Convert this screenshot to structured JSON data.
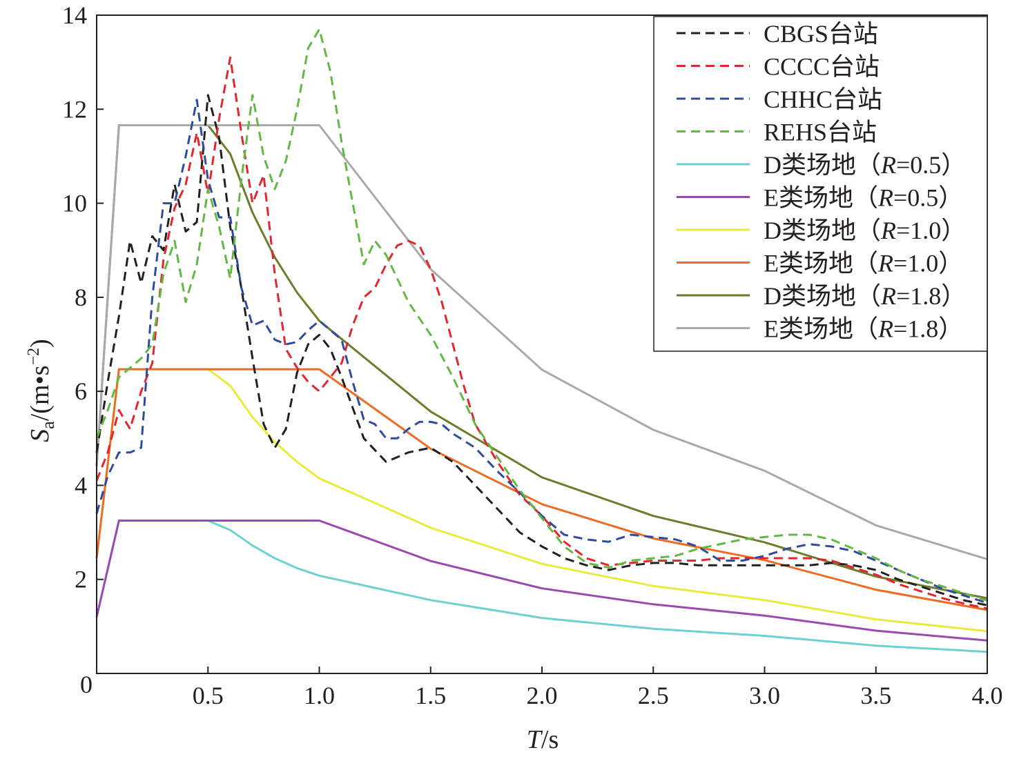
{
  "chart_data": {
    "type": "line",
    "xlabel": {
      "italic": "T",
      "rest": "/s"
    },
    "ylabel": {
      "italic": "S",
      "sub": "a",
      "unit": "/(m•s",
      "sup": "−2",
      "close": ")"
    },
    "xlim": [
      0,
      4.0
    ],
    "ylim": [
      0,
      14
    ],
    "xticks": [
      0.5,
      1.0,
      1.5,
      2.0,
      2.5,
      3.0,
      3.5,
      4.0
    ],
    "xtick_labels": [
      "0.5",
      "1.0",
      "1.5",
      "2.0",
      "2.5",
      "3.0",
      "3.5",
      "4.0"
    ],
    "yticks": [
      2,
      4,
      6,
      8,
      10,
      12,
      14
    ],
    "ytick_labels": [
      "2",
      "4",
      "6",
      "8",
      "10",
      "12",
      "14"
    ],
    "origin_label": "0",
    "grid": false,
    "legend_position": "top-right",
    "series": [
      {
        "name": "CBGS台站",
        "color": "#231f20",
        "style": "dashed",
        "points": [
          [
            0,
            4.7
          ],
          [
            0.05,
            6.2
          ],
          [
            0.1,
            7.6
          ],
          [
            0.15,
            9.2
          ],
          [
            0.2,
            8.3
          ],
          [
            0.25,
            9.3
          ],
          [
            0.3,
            9.0
          ],
          [
            0.35,
            10.4
          ],
          [
            0.4,
            9.4
          ],
          [
            0.45,
            9.6
          ],
          [
            0.5,
            12.3
          ],
          [
            0.55,
            11.4
          ],
          [
            0.6,
            9.5
          ],
          [
            0.65,
            8.2
          ],
          [
            0.7,
            6.7
          ],
          [
            0.75,
            5.3
          ],
          [
            0.8,
            4.8
          ],
          [
            0.85,
            5.2
          ],
          [
            0.9,
            6.4
          ],
          [
            0.95,
            7.0
          ],
          [
            1.0,
            7.2
          ],
          [
            1.05,
            6.9
          ],
          [
            1.1,
            6.3
          ],
          [
            1.2,
            5.0
          ],
          [
            1.3,
            4.5
          ],
          [
            1.4,
            4.7
          ],
          [
            1.5,
            4.8
          ],
          [
            1.6,
            4.5
          ],
          [
            1.7,
            4.0
          ],
          [
            1.8,
            3.5
          ],
          [
            1.9,
            3.0
          ],
          [
            2.0,
            2.7
          ],
          [
            2.1,
            2.45
          ],
          [
            2.2,
            2.3
          ],
          [
            2.3,
            2.2
          ],
          [
            2.4,
            2.3
          ],
          [
            2.5,
            2.35
          ],
          [
            2.6,
            2.35
          ],
          [
            2.7,
            2.3
          ],
          [
            2.8,
            2.3
          ],
          [
            2.9,
            2.3
          ],
          [
            3.0,
            2.3
          ],
          [
            3.1,
            2.3
          ],
          [
            3.2,
            2.3
          ],
          [
            3.3,
            2.35
          ],
          [
            3.4,
            2.3
          ],
          [
            3.5,
            2.2
          ],
          [
            3.6,
            2.0
          ],
          [
            3.7,
            1.85
          ],
          [
            3.8,
            1.7
          ],
          [
            3.9,
            1.55
          ],
          [
            4.0,
            1.45
          ]
        ]
      },
      {
        "name": "CCCC台站",
        "color": "#e3262e",
        "style": "dashed",
        "points": [
          [
            0,
            4.1
          ],
          [
            0.05,
            4.7
          ],
          [
            0.1,
            5.6
          ],
          [
            0.15,
            5.2
          ],
          [
            0.2,
            6.0
          ],
          [
            0.25,
            6.6
          ],
          [
            0.3,
            8.8
          ],
          [
            0.35,
            9.9
          ],
          [
            0.4,
            10.4
          ],
          [
            0.45,
            11.5
          ],
          [
            0.5,
            10.2
          ],
          [
            0.55,
            11.8
          ],
          [
            0.6,
            13.1
          ],
          [
            0.65,
            11.5
          ],
          [
            0.7,
            10.0
          ],
          [
            0.75,
            10.6
          ],
          [
            0.8,
            8.5
          ],
          [
            0.85,
            6.9
          ],
          [
            0.9,
            6.5
          ],
          [
            0.95,
            6.2
          ],
          [
            1.0,
            6.0
          ],
          [
            1.05,
            6.3
          ],
          [
            1.1,
            6.6
          ],
          [
            1.15,
            7.4
          ],
          [
            1.2,
            8.0
          ],
          [
            1.25,
            8.2
          ],
          [
            1.3,
            8.7
          ],
          [
            1.35,
            9.1
          ],
          [
            1.4,
            9.2
          ],
          [
            1.45,
            9.1
          ],
          [
            1.5,
            8.6
          ],
          [
            1.55,
            7.9
          ],
          [
            1.6,
            7.0
          ],
          [
            1.65,
            6.1
          ],
          [
            1.7,
            5.3
          ],
          [
            1.8,
            4.5
          ],
          [
            1.9,
            3.8
          ],
          [
            2.0,
            3.35
          ],
          [
            2.1,
            2.8
          ],
          [
            2.2,
            2.45
          ],
          [
            2.3,
            2.3
          ],
          [
            2.4,
            2.35
          ],
          [
            2.5,
            2.4
          ],
          [
            2.6,
            2.4
          ],
          [
            2.7,
            2.4
          ],
          [
            2.8,
            2.45
          ],
          [
            2.9,
            2.45
          ],
          [
            3.0,
            2.45
          ],
          [
            3.1,
            2.45
          ],
          [
            3.2,
            2.45
          ],
          [
            3.3,
            2.4
          ],
          [
            3.4,
            2.25
          ],
          [
            3.5,
            2.1
          ],
          [
            3.6,
            1.9
          ],
          [
            3.7,
            1.75
          ],
          [
            3.8,
            1.6
          ],
          [
            3.9,
            1.48
          ],
          [
            4.0,
            1.38
          ]
        ]
      },
      {
        "name": "CHHC台站",
        "color": "#2e4c9e",
        "style": "dashed",
        "points": [
          [
            0,
            3.4
          ],
          [
            0.05,
            4.2
          ],
          [
            0.1,
            4.7
          ],
          [
            0.15,
            4.7
          ],
          [
            0.2,
            4.8
          ],
          [
            0.25,
            8.0
          ],
          [
            0.3,
            10.0
          ],
          [
            0.35,
            10.0
          ],
          [
            0.4,
            11.0
          ],
          [
            0.45,
            12.2
          ],
          [
            0.5,
            10.5
          ],
          [
            0.55,
            9.7
          ],
          [
            0.6,
            9.7
          ],
          [
            0.65,
            8.2
          ],
          [
            0.7,
            7.4
          ],
          [
            0.75,
            7.5
          ],
          [
            0.8,
            7.1
          ],
          [
            0.85,
            7.0
          ],
          [
            0.9,
            7.05
          ],
          [
            0.95,
            7.3
          ],
          [
            1.0,
            7.5
          ],
          [
            1.05,
            7.3
          ],
          [
            1.1,
            7.1
          ],
          [
            1.15,
            6.2
          ],
          [
            1.2,
            5.4
          ],
          [
            1.25,
            5.3
          ],
          [
            1.3,
            5.0
          ],
          [
            1.35,
            5.0
          ],
          [
            1.4,
            5.2
          ],
          [
            1.45,
            5.35
          ],
          [
            1.5,
            5.35
          ],
          [
            1.55,
            5.3
          ],
          [
            1.6,
            5.1
          ],
          [
            1.7,
            4.8
          ],
          [
            1.8,
            4.3
          ],
          [
            1.9,
            3.85
          ],
          [
            2.0,
            3.35
          ],
          [
            2.1,
            2.95
          ],
          [
            2.2,
            2.85
          ],
          [
            2.3,
            2.8
          ],
          [
            2.4,
            2.95
          ],
          [
            2.5,
            2.9
          ],
          [
            2.6,
            2.85
          ],
          [
            2.7,
            2.7
          ],
          [
            2.8,
            2.4
          ],
          [
            2.9,
            2.4
          ],
          [
            3.0,
            2.5
          ],
          [
            3.1,
            2.65
          ],
          [
            3.2,
            2.75
          ],
          [
            3.3,
            2.7
          ],
          [
            3.4,
            2.6
          ],
          [
            3.5,
            2.4
          ],
          [
            3.6,
            2.2
          ],
          [
            3.7,
            2.0
          ],
          [
            3.8,
            1.8
          ],
          [
            3.9,
            1.65
          ],
          [
            4.0,
            1.5
          ]
        ]
      },
      {
        "name": "REHS台站",
        "color": "#62b843",
        "style": "dashed",
        "points": [
          [
            0,
            5.0
          ],
          [
            0.05,
            5.6
          ],
          [
            0.1,
            6.3
          ],
          [
            0.15,
            6.5
          ],
          [
            0.2,
            6.7
          ],
          [
            0.25,
            7.0
          ],
          [
            0.3,
            8.5
          ],
          [
            0.35,
            9.2
          ],
          [
            0.4,
            7.9
          ],
          [
            0.45,
            8.7
          ],
          [
            0.5,
            10.3
          ],
          [
            0.55,
            9.5
          ],
          [
            0.6,
            8.4
          ],
          [
            0.65,
            10.5
          ],
          [
            0.7,
            12.3
          ],
          [
            0.75,
            11.0
          ],
          [
            0.8,
            10.3
          ],
          [
            0.85,
            10.9
          ],
          [
            0.9,
            12.0
          ],
          [
            0.95,
            13.3
          ],
          [
            1.0,
            13.7
          ],
          [
            1.05,
            12.8
          ],
          [
            1.1,
            11.3
          ],
          [
            1.15,
            10.0
          ],
          [
            1.2,
            8.7
          ],
          [
            1.25,
            9.2
          ],
          [
            1.3,
            8.9
          ],
          [
            1.35,
            8.4
          ],
          [
            1.4,
            7.9
          ],
          [
            1.5,
            7.2
          ],
          [
            1.6,
            6.3
          ],
          [
            1.7,
            5.3
          ],
          [
            1.8,
            4.6
          ],
          [
            1.9,
            3.9
          ],
          [
            2.0,
            3.3
          ],
          [
            2.1,
            2.7
          ],
          [
            2.2,
            2.35
          ],
          [
            2.3,
            2.25
          ],
          [
            2.4,
            2.4
          ],
          [
            2.5,
            2.45
          ],
          [
            2.6,
            2.5
          ],
          [
            2.7,
            2.65
          ],
          [
            2.8,
            2.75
          ],
          [
            2.9,
            2.85
          ],
          [
            3.0,
            2.9
          ],
          [
            3.1,
            2.95
          ],
          [
            3.2,
            2.95
          ],
          [
            3.3,
            2.85
          ],
          [
            3.4,
            2.65
          ],
          [
            3.5,
            2.45
          ],
          [
            3.6,
            2.2
          ],
          [
            3.7,
            2.0
          ],
          [
            3.8,
            1.85
          ],
          [
            3.9,
            1.7
          ],
          [
            4.0,
            1.55
          ]
        ]
      },
      {
        "name": "D类场地（R=0.5）",
        "legend": {
          "prefix": "D类场地（",
          "italic": "R",
          "suffix": "=0.5）"
        },
        "color": "#6cd0d4",
        "style": "solid",
        "points": [
          [
            0,
            1.2
          ],
          [
            0.1,
            3.25
          ],
          [
            0.5,
            3.25
          ],
          [
            0.6,
            3.05
          ],
          [
            0.7,
            2.72
          ],
          [
            0.8,
            2.45
          ],
          [
            0.9,
            2.24
          ],
          [
            1.0,
            2.08
          ],
          [
            1.5,
            1.56
          ],
          [
            2.0,
            1.18
          ],
          [
            2.5,
            0.95
          ],
          [
            3.0,
            0.8
          ],
          [
            3.5,
            0.59
          ],
          [
            4.0,
            0.46
          ]
        ]
      },
      {
        "name": "E类场地（R=0.5）",
        "legend": {
          "prefix": "E类场地（",
          "italic": "R",
          "suffix": "=0.5）"
        },
        "color": "#9b48b0",
        "style": "solid",
        "points": [
          [
            0,
            1.2
          ],
          [
            0.1,
            3.25
          ],
          [
            1.0,
            3.25
          ],
          [
            1.5,
            2.39
          ],
          [
            2.0,
            1.81
          ],
          [
            2.5,
            1.47
          ],
          [
            3.0,
            1.23
          ],
          [
            3.5,
            0.91
          ],
          [
            4.0,
            0.7
          ]
        ]
      },
      {
        "name": "D类场地（R=1.0）",
        "legend": {
          "prefix": "D类场地（",
          "italic": "R",
          "suffix": "=1.0）"
        },
        "color": "#eaea3c",
        "style": "solid",
        "points": [
          [
            0,
            2.45
          ],
          [
            0.1,
            6.47
          ],
          [
            0.5,
            6.47
          ],
          [
            0.6,
            6.12
          ],
          [
            0.7,
            5.45
          ],
          [
            0.8,
            4.92
          ],
          [
            0.9,
            4.5
          ],
          [
            1.0,
            4.15
          ],
          [
            1.5,
            3.1
          ],
          [
            2.0,
            2.33
          ],
          [
            2.5,
            1.86
          ],
          [
            3.0,
            1.56
          ],
          [
            3.5,
            1.15
          ],
          [
            4.0,
            0.9
          ]
        ]
      },
      {
        "name": "E类场地（R=1.0）",
        "legend": {
          "prefix": "E类场地（",
          "italic": "R",
          "suffix": "=1.0）"
        },
        "color": "#ee6b24",
        "style": "solid",
        "points": [
          [
            0,
            2.45
          ],
          [
            0.1,
            6.47
          ],
          [
            1.0,
            6.47
          ],
          [
            1.5,
            4.78
          ],
          [
            2.0,
            3.6
          ],
          [
            2.5,
            2.87
          ],
          [
            3.0,
            2.41
          ],
          [
            3.5,
            1.78
          ],
          [
            4.0,
            1.35
          ]
        ]
      },
      {
        "name": "D类场地（R=1.8）",
        "legend": {
          "prefix": "D类场地（",
          "italic": "R",
          "suffix": "=1.8）"
        },
        "color": "#6b7d2a",
        "style": "solid",
        "points": [
          [
            0,
            4.4
          ],
          [
            0.1,
            11.66
          ],
          [
            0.5,
            11.66
          ],
          [
            0.6,
            11.05
          ],
          [
            0.7,
            9.8
          ],
          [
            0.8,
            8.85
          ],
          [
            0.9,
            8.1
          ],
          [
            1.0,
            7.5
          ],
          [
            1.5,
            5.57
          ],
          [
            2.0,
            4.17
          ],
          [
            2.5,
            3.35
          ],
          [
            3.0,
            2.79
          ],
          [
            3.5,
            2.06
          ],
          [
            4.0,
            1.6
          ]
        ]
      },
      {
        "name": "E类场地（R=1.8）",
        "legend": {
          "prefix": "E类场地（",
          "italic": "R",
          "suffix": "=1.8）"
        },
        "color": "#a9a9a9",
        "style": "solid",
        "points": [
          [
            0,
            4.4
          ],
          [
            0.1,
            11.66
          ],
          [
            1.0,
            11.66
          ],
          [
            1.5,
            8.6
          ],
          [
            2.0,
            6.46
          ],
          [
            2.5,
            5.18
          ],
          [
            3.0,
            4.31
          ],
          [
            3.5,
            3.15
          ],
          [
            4.0,
            2.43
          ]
        ]
      }
    ]
  }
}
